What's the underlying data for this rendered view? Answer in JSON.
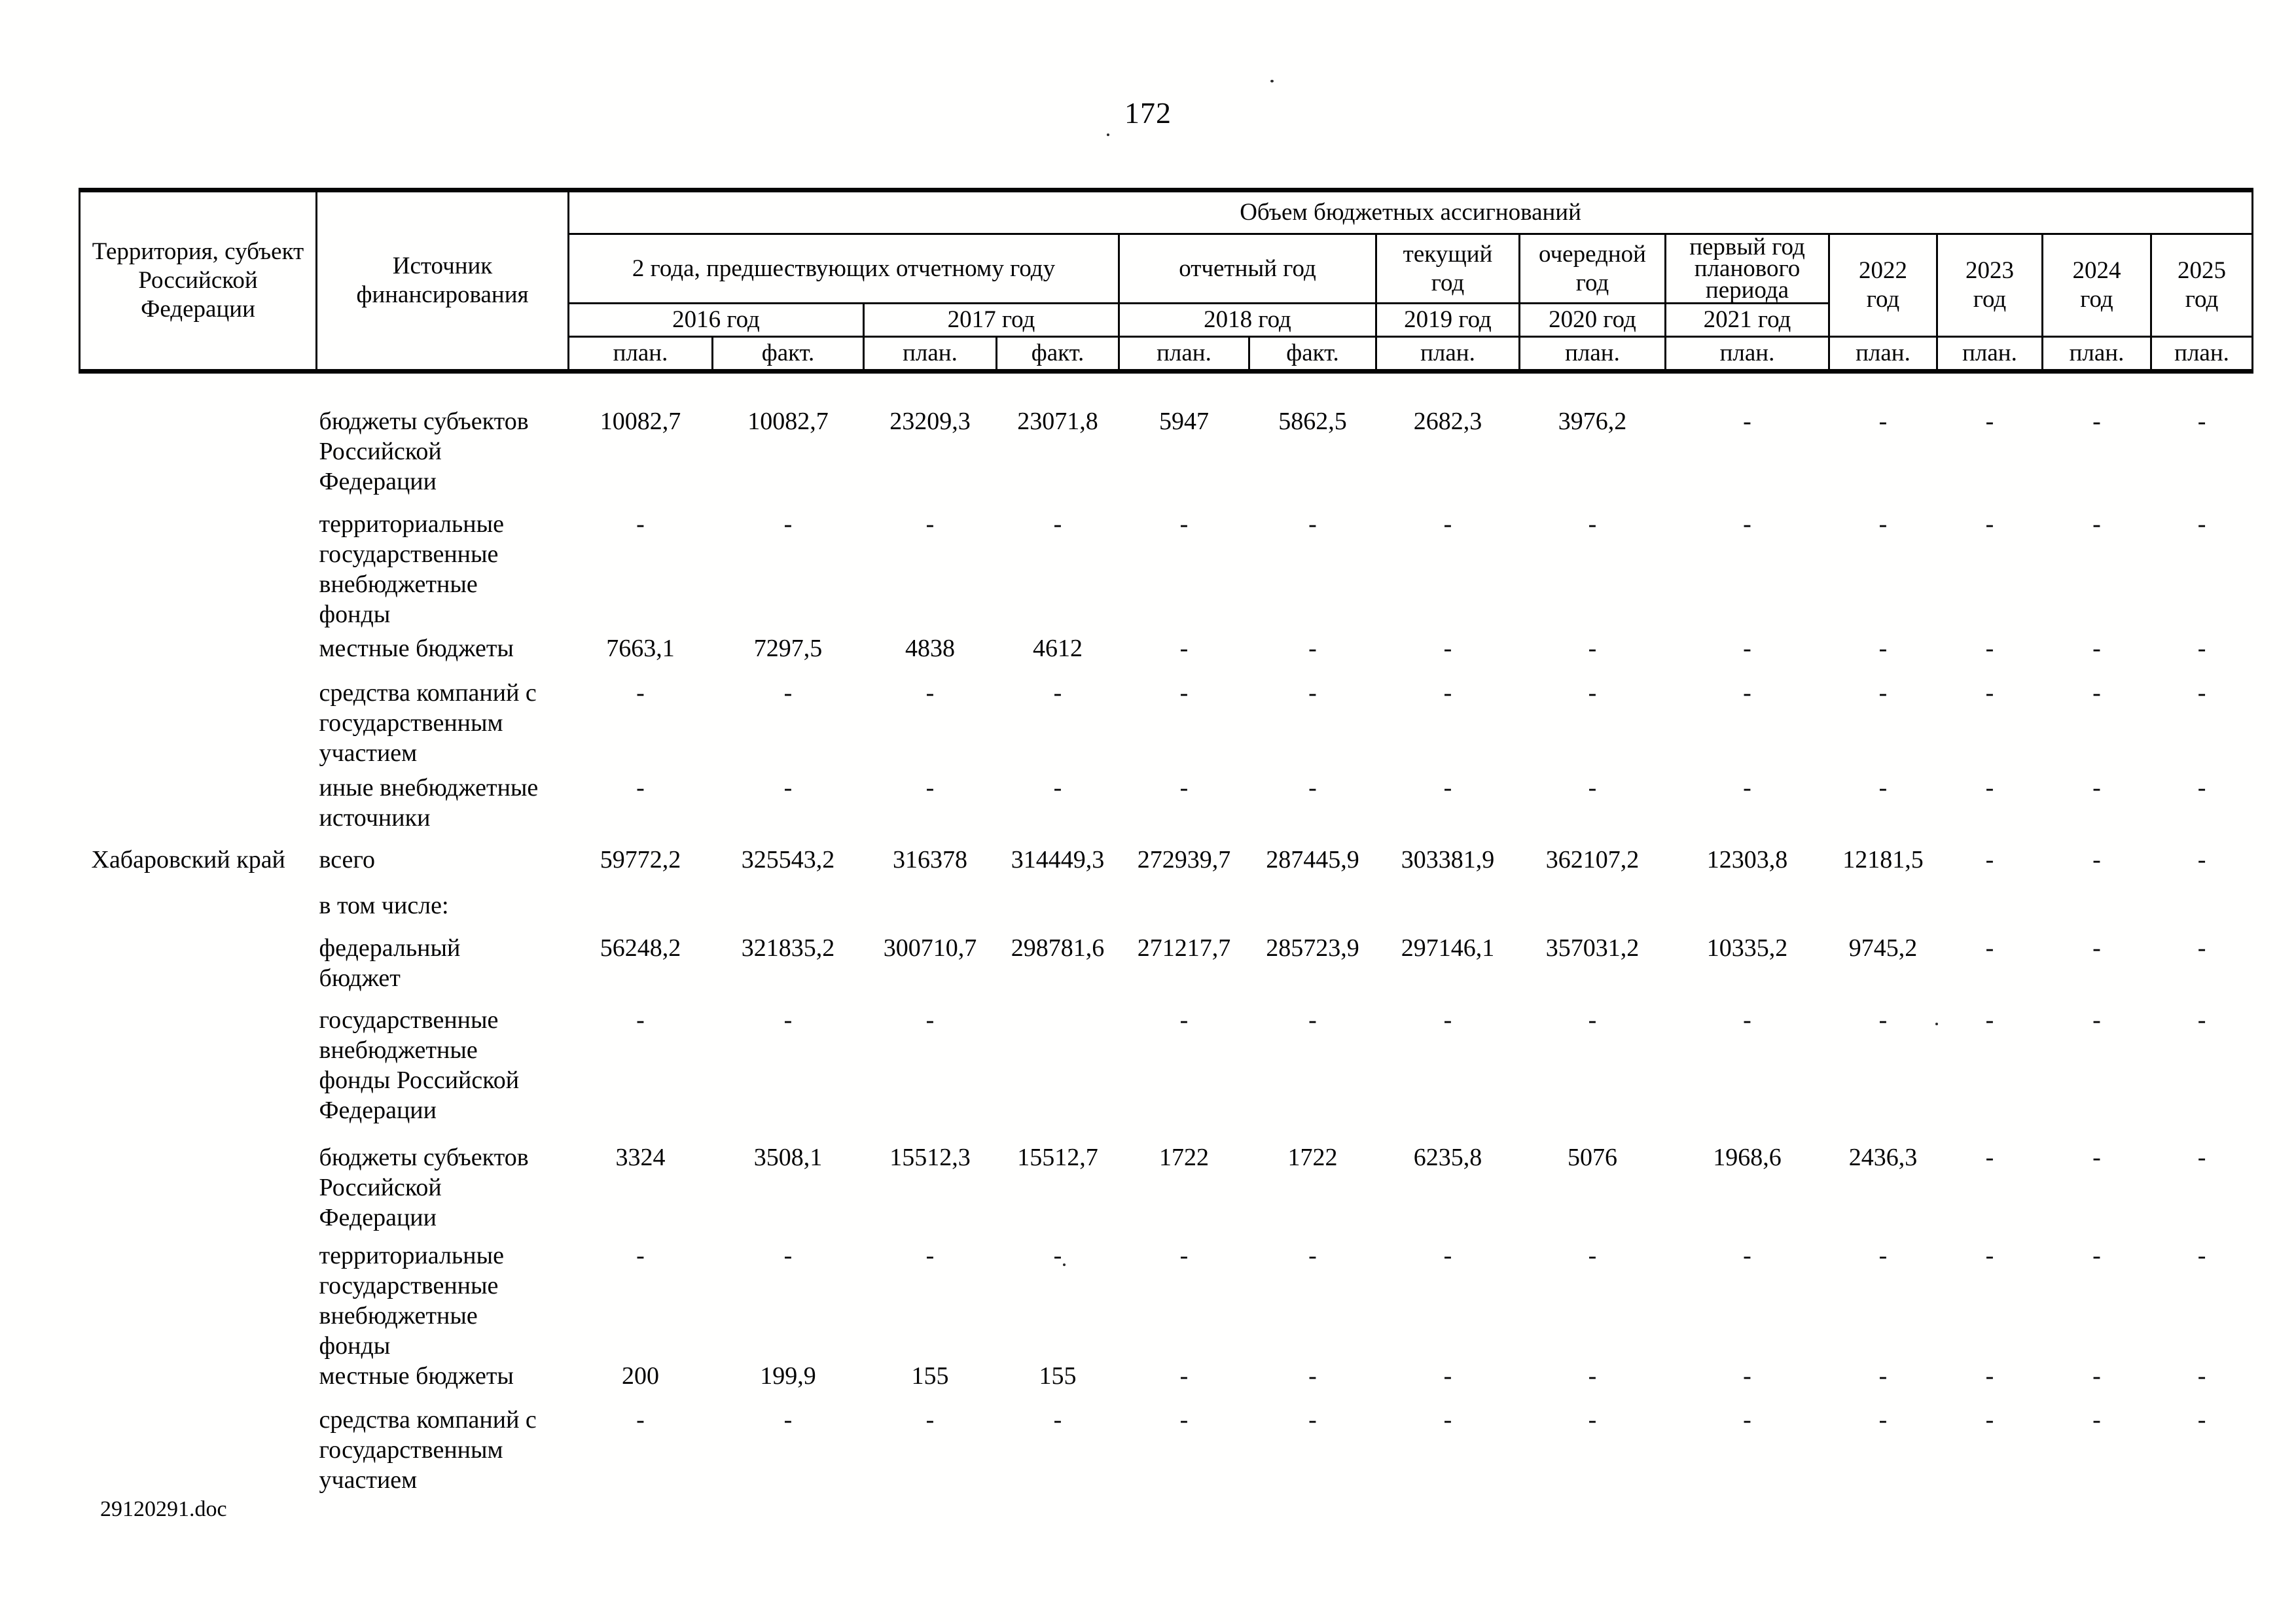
{
  "page": {
    "number": "172",
    "footer": "29120291.doc"
  },
  "table": {
    "header": {
      "territory": "Территория, субъект\nРоссийской\nФедерации",
      "source": "Источник\nфинансирования",
      "volume": "Объем бюджетных ассигнований",
      "groups": [
        "2 года, предшествующих отчетному году",
        "отчетный год",
        "текущий\nгод",
        "очередной\nгод",
        "первый год\nпланового\nпериода"
      ],
      "years": [
        "2016 год",
        "2017 год",
        "2018 год",
        "2019 год",
        "2020 год",
        "2021 год"
      ],
      "tail_years": [
        "2022\nгод",
        "2023\nгод",
        "2024\nгод",
        "2025\nгод"
      ],
      "plan_fact": [
        "план.",
        "факт.",
        "план.",
        "факт.",
        "план.",
        "факт.",
        "план.",
        "план.",
        "план.",
        "план.",
        "план.",
        "план.",
        "план."
      ]
    },
    "rows": [
      {
        "region": "",
        "source": "бюджеты субъектов\nРоссийской\nФедерации",
        "values": [
          "10082,7",
          "10082,7",
          "23209,3",
          "23071,8",
          "5947",
          "5862,5",
          "2682,3",
          "3976,2",
          "-",
          "-",
          "-",
          "-",
          "-"
        ]
      },
      {
        "region": "",
        "source": "территориальные\nгосударственные\nвнебюджетные\nфонды",
        "values": [
          "-",
          "-",
          "-",
          "-",
          "-",
          "-",
          "-",
          "-",
          "-",
          "-",
          "-",
          "-",
          "-"
        ]
      },
      {
        "region": "",
        "source": "местные бюджеты",
        "values": [
          "7663,1",
          "7297,5",
          "4838",
          "4612",
          "-",
          "-",
          "-",
          "-",
          "-",
          "-",
          "-",
          "-",
          "-"
        ]
      },
      {
        "region": "",
        "source": "средства компаний с\nгосударственным\nучастием",
        "values": [
          "-",
          "-",
          "-",
          "-",
          "-",
          "-",
          "-",
          "-",
          "-",
          "-",
          "-",
          "-",
          "-"
        ]
      },
      {
        "region": "",
        "source": "иные внебюджетные\nисточники",
        "values": [
          "-",
          "-",
          "-",
          "-",
          "-",
          "-",
          "-",
          "-",
          "-",
          "-",
          "-",
          "-",
          "-"
        ]
      },
      {
        "region": "Хабаровский край",
        "source": "всего",
        "values": [
          "59772,2",
          "325543,2",
          "316378",
          "314449,3",
          "272939,7",
          "287445,9",
          "303381,9",
          "362107,2",
          "12303,8",
          "12181,5",
          "-",
          "-",
          "-"
        ]
      },
      {
        "region": "",
        "source": "в том числе:",
        "values": [
          "",
          "",
          "",
          "",
          "",
          "",
          "",
          "",
          "",
          "",
          "",
          "",
          ""
        ]
      },
      {
        "region": "",
        "source": "федеральный\nбюджет",
        "values": [
          "56248,2",
          "321835,2",
          "300710,7",
          "298781,6",
          "271217,7",
          "285723,9",
          "297146,1",
          "357031,2",
          "10335,2",
          "9745,2",
          "-",
          "-",
          "-"
        ]
      },
      {
        "region": "",
        "source": "государственные\nвнебюджетные\nфонды Российской\nФедерации",
        "values": [
          "-",
          "-",
          "-",
          "",
          "-",
          "-",
          "-",
          "-",
          "-",
          "-",
          "-",
          "-",
          "-"
        ]
      },
      {
        "region": "",
        "source": "бюджеты субъектов\nРоссийской\nФедерации",
        "values": [
          "3324",
          "3508,1",
          "15512,3",
          "15512,7",
          "1722",
          "1722",
          "6235,8",
          "5076",
          "1968,6",
          "2436,3",
          "-",
          "-",
          "-"
        ]
      },
      {
        "region": "",
        "source": "территориальные\nгосударственные\nвнебюджетные\nфонды",
        "values": [
          "-",
          "-",
          "-",
          "-",
          "-",
          "-",
          "-",
          "-",
          "-",
          "-",
          "-",
          "-",
          "-"
        ]
      },
      {
        "region": "",
        "source": "местные бюджеты",
        "values": [
          "200",
          "199,9",
          "155",
          "155",
          "-",
          "-",
          "-",
          "-",
          "-",
          "-",
          "-",
          "-",
          "-"
        ]
      },
      {
        "region": "",
        "source": "средства компаний с\nгосударственным\nучастием",
        "values": [
          "-",
          "-",
          "-",
          "-",
          "-",
          "-",
          "-",
          "-",
          "-",
          "-",
          "-",
          "-",
          "-"
        ]
      }
    ]
  }
}
